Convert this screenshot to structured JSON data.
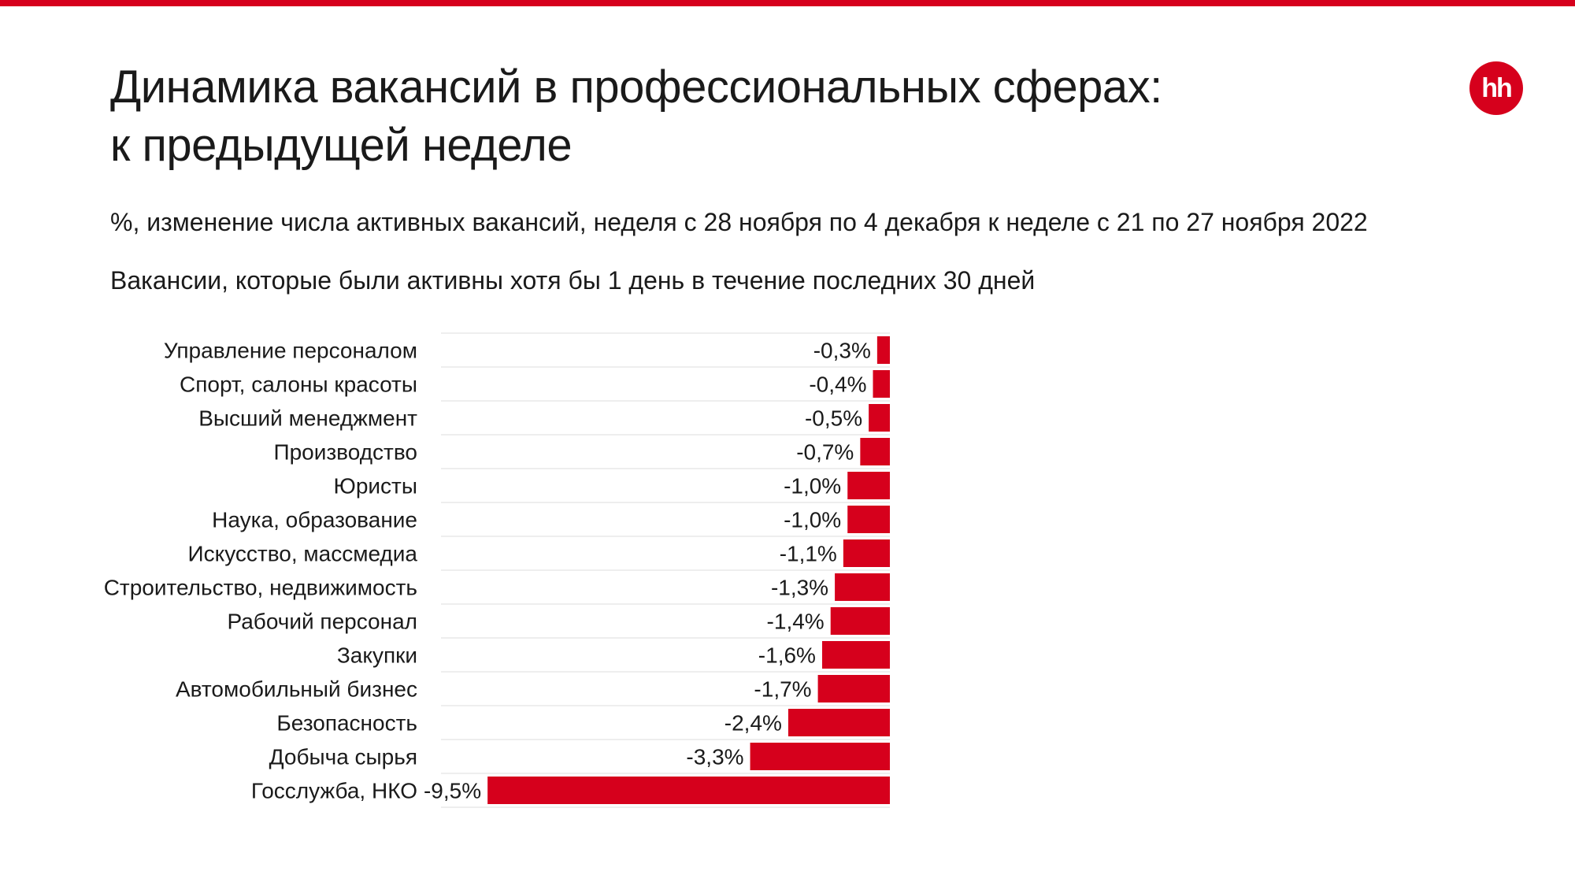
{
  "colors": {
    "accent": "#d6001c",
    "text": "#1a1a1a",
    "gridline": "#e8e8e8"
  },
  "header": {
    "title_line1": "Динамика вакансий в профессиональных сферах:",
    "title_line2": "к предыдущей неделе",
    "subtitle_1": "%, изменение числа активных вакансий, неделя с 28 ноября по 4 декабря к неделе с 21 по 27 ноября 2022",
    "subtitle_2": "Вакансии, которые были активны хотя бы 1 день в течение последних 30 дней"
  },
  "logo": {
    "text": "hh"
  },
  "chart_data": {
    "type": "bar",
    "orientation": "horizontal",
    "categories": [
      "Управление персоналом",
      "Спорт, салоны красоты",
      "Высший менеджмент",
      "Производство",
      "Юристы",
      "Наука, образование",
      "Искусство, массмедиа",
      "Строительство, недвижимость",
      "Рабочий персонал",
      "Закупки",
      "Автомобильный бизнес",
      "Безопасность",
      "Добыча сырья",
      "Госслужба, НКО"
    ],
    "values": [
      -0.3,
      -0.4,
      -0.5,
      -0.7,
      -1.0,
      -1.0,
      -1.1,
      -1.3,
      -1.4,
      -1.6,
      -1.7,
      -2.4,
      -3.3,
      -9.5
    ],
    "labels": [
      "-0,3%",
      "-0,4%",
      "-0,5%",
      "-0,7%",
      "-1,0%",
      "-1,0%",
      "-1,1%",
      "-1,3%",
      "-1,4%",
      "-1,6%",
      "-1,7%",
      "-2,4%",
      "-3,3%",
      "-9,5%"
    ],
    "xlim": [
      -10.6,
      0
    ],
    "grid": true,
    "legend": "none"
  }
}
